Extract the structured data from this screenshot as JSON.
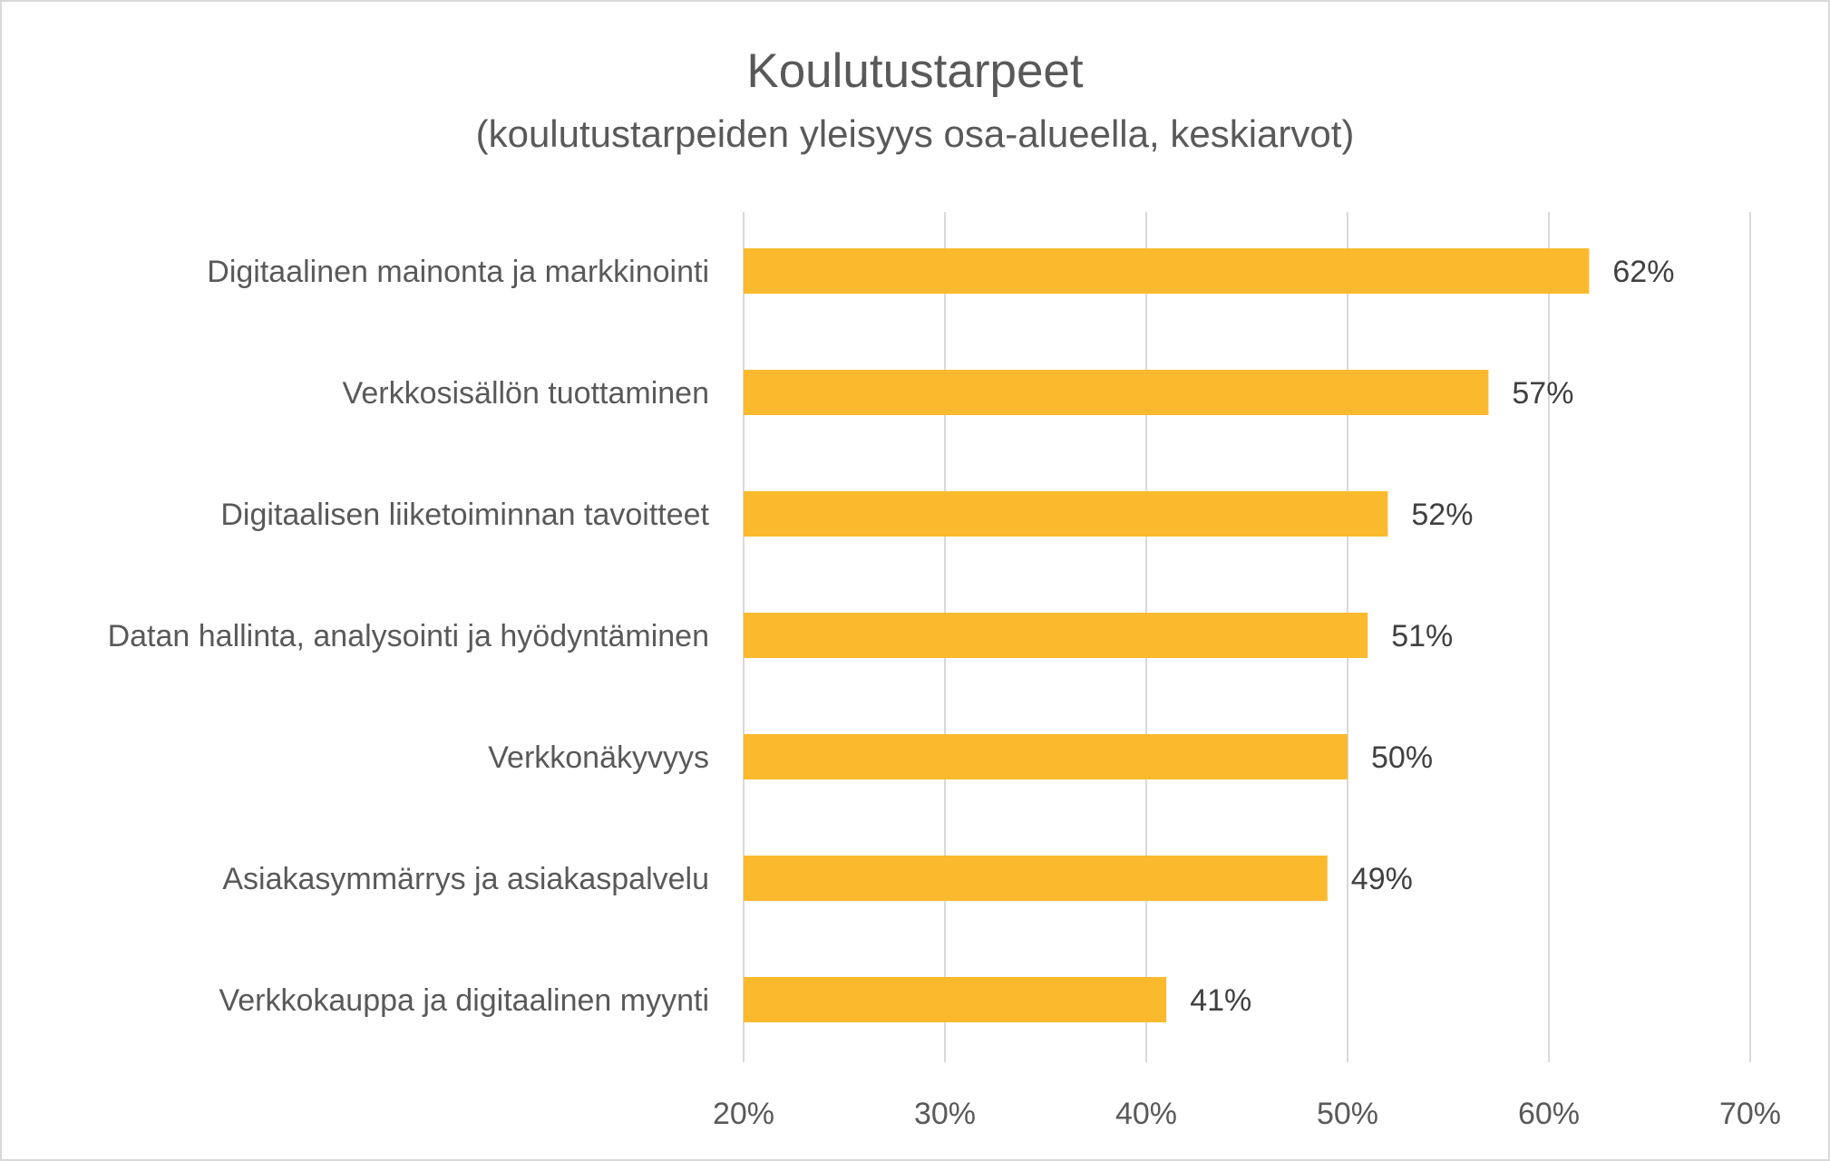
{
  "chart_data": {
    "type": "bar",
    "orientation": "horizontal",
    "title": "Koulutustarpeet",
    "subtitle": "(koulutustarpeiden  yleisyys osa-alueella,  keskiarvot)",
    "categories": [
      "Digitaalinen mainonta ja markkinointi",
      "Verkkosisällön tuottaminen",
      "Digitaalisen liiketoiminnan tavoitteet ",
      "Datan hallinta, analysointi ja hyödyntäminen",
      "Verkkonäkyvyys",
      "Asiakasymmärrys ja asiakaspalvelu",
      "Verkkokauppa ja digitaalinen myynti"
    ],
    "values": [
      62,
      57,
      52,
      51,
      50,
      49,
      41
    ],
    "value_labels": [
      "62%",
      "57%",
      "52%",
      "51%",
      "50%",
      "49%",
      "41%"
    ],
    "xlim": [
      20,
      70
    ],
    "xticks": [
      20,
      30,
      40,
      50,
      60,
      70
    ],
    "xtick_labels": [
      "20%",
      "30%",
      "40%",
      "50%",
      "60%",
      "70%"
    ],
    "xlabel": "",
    "ylabel": "",
    "grid": true,
    "legend": "none",
    "bar_color": "#FBBA2D"
  }
}
